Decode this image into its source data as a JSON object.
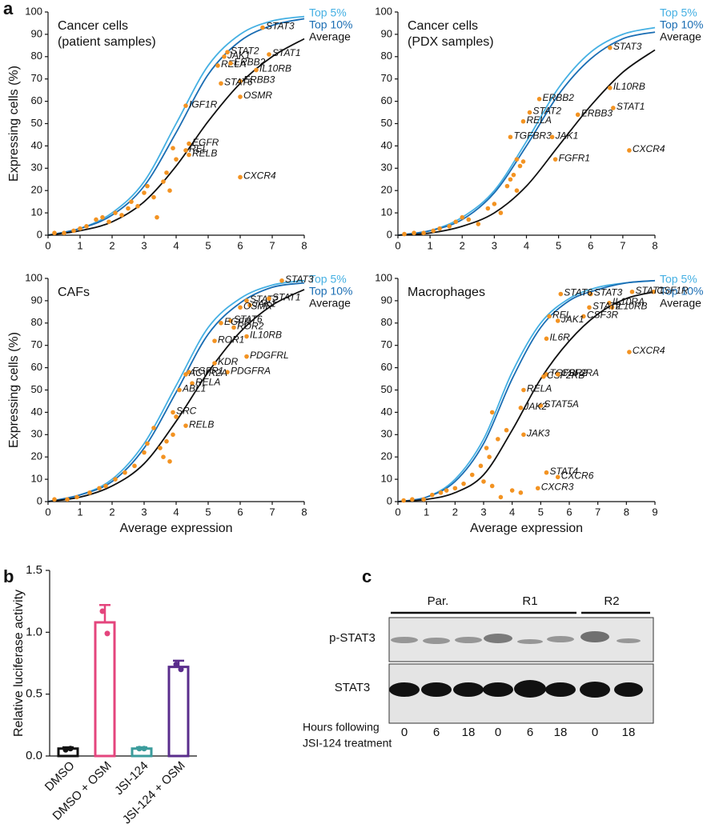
{
  "panel_labels": [
    "a",
    "b",
    "c"
  ],
  "chart_data": [
    {
      "type": "scatter",
      "title": [
        "Cancer cells",
        "(patient samples)"
      ],
      "ylabel": "Expressing cells (%)",
      "xlim": [
        0,
        8
      ],
      "ylim": [
        0,
        100
      ],
      "xticks": [
        0,
        1,
        2,
        3,
        4,
        5,
        6,
        7,
        8
      ],
      "yticks": [
        0,
        10,
        20,
        30,
        40,
        50,
        60,
        70,
        80,
        90,
        100
      ],
      "series": [
        {
          "name": "Top 5%",
          "color": "#45b0e3",
          "x": [
            0,
            1,
            2,
            3,
            4,
            5,
            6,
            7,
            8
          ],
          "values": [
            0,
            3,
            10,
            24,
            50,
            76,
            90,
            96,
            98
          ]
        },
        {
          "name": "Top 10%",
          "color": "#1a6db3",
          "x": [
            0,
            1,
            2,
            3,
            4,
            5,
            6,
            7,
            8
          ],
          "values": [
            0,
            3,
            9,
            22,
            46,
            72,
            87,
            94,
            97
          ]
        },
        {
          "name": "Average",
          "color": "#111111",
          "x": [
            0,
            1,
            2,
            3,
            4,
            5,
            6,
            7,
            8
          ],
          "values": [
            0,
            2,
            6,
            15,
            31,
            51,
            68,
            80,
            88
          ]
        }
      ],
      "points": {
        "color": "#f39322",
        "x": [
          6.7,
          5.6,
          5.5,
          5.3,
          5.7,
          6.9,
          6.5,
          6.0,
          5.4,
          6.0,
          4.3,
          4.4,
          4.3,
          4.4,
          6.0,
          0.2,
          0.5,
          0.8,
          1.0,
          1.2,
          1.5,
          1.7,
          1.9,
          2.1,
          2.3,
          2.5,
          2.6,
          2.8,
          3.0,
          3.1,
          3.3,
          3.4,
          3.6,
          3.7,
          3.9,
          4.0,
          3.8
        ],
        "values": [
          93,
          82,
          80,
          76,
          77,
          81,
          74,
          69,
          68,
          62,
          58,
          41,
          38,
          36,
          26,
          1,
          1,
          2,
          3,
          4,
          7,
          8,
          6,
          10,
          9,
          12,
          15,
          13,
          19,
          22,
          17,
          8,
          24,
          28,
          39,
          34,
          20
        ],
        "labels": [
          "STAT3",
          "STAT2",
          "JAK1",
          "RELA",
          "ERBB2",
          "STAT1",
          "IL10RB",
          "ERBB3",
          "STAT6",
          "OSMR",
          "IGF1R",
          "EGFR",
          "REL",
          "RELB",
          "CXCR4",
          null,
          null,
          null,
          null,
          null,
          null,
          null,
          null,
          null,
          null,
          null,
          null,
          null,
          null,
          null,
          null,
          null,
          null,
          null,
          null,
          null,
          null
        ]
      }
    },
    {
      "type": "scatter",
      "title": [
        "Cancer cells",
        "(PDX samples)"
      ],
      "xlim": [
        0,
        8
      ],
      "ylim": [
        0,
        100
      ],
      "xticks": [
        0,
        1,
        2,
        3,
        4,
        5,
        6,
        7,
        8
      ],
      "yticks": [
        0,
        10,
        20,
        30,
        40,
        50,
        60,
        70,
        80,
        90,
        100
      ],
      "series": [
        {
          "name": "Top 5%",
          "color": "#45b0e3",
          "x": [
            0,
            1,
            2,
            3,
            4,
            5,
            6,
            7,
            8
          ],
          "values": [
            0,
            2,
            8,
            20,
            42,
            66,
            82,
            90,
            93
          ]
        },
        {
          "name": "Top 10%",
          "color": "#1a6db3",
          "x": [
            0,
            1,
            2,
            3,
            4,
            5,
            6,
            7,
            8
          ],
          "values": [
            0,
            2,
            7,
            19,
            40,
            63,
            79,
            88,
            91
          ]
        },
        {
          "name": "Average",
          "color": "#111111",
          "x": [
            0,
            1,
            2,
            3,
            4,
            5,
            6,
            7,
            8
          ],
          "values": [
            0,
            1,
            4,
            10,
            22,
            40,
            58,
            73,
            83
          ]
        }
      ],
      "points": {
        "color": "#f39322",
        "x": [
          6.6,
          6.6,
          6.7,
          4.4,
          4.1,
          3.9,
          5.6,
          3.5,
          4.8,
          4.9,
          7.2,
          0.2,
          0.5,
          0.8,
          1.1,
          1.3,
          1.6,
          1.8,
          2.0,
          2.2,
          2.5,
          2.8,
          3.0,
          3.2,
          3.4,
          3.5,
          3.6,
          3.7,
          3.8,
          3.9,
          3.7
        ],
        "values": [
          84,
          66,
          57,
          61,
          55,
          51,
          54,
          44,
          44,
          34,
          38,
          0.5,
          1,
          1,
          2,
          3,
          4,
          6,
          8,
          7,
          5,
          12,
          14,
          10,
          22,
          25,
          27,
          20,
          31,
          33,
          34
        ],
        "labels": [
          "STAT3",
          "IL10RB",
          "STAT1",
          "ERBB2",
          "STAT2",
          "RELA",
          "ERBB3",
          "TGFBR3",
          "JAK1",
          "FGFR1",
          "CXCR4",
          null,
          null,
          null,
          null,
          null,
          null,
          null,
          null,
          null,
          null,
          null,
          null,
          null,
          null,
          null,
          null,
          null,
          null,
          null,
          null
        ]
      }
    },
    {
      "type": "scatter",
      "title": [
        "CAFs"
      ],
      "xlabel": "Average expression",
      "ylabel": "Expressing cells (%)",
      "xlim": [
        0,
        8
      ],
      "ylim": [
        0,
        100
      ],
      "xticks": [
        0,
        1,
        2,
        3,
        4,
        5,
        6,
        7,
        8
      ],
      "yticks": [
        0,
        10,
        20,
        30,
        40,
        50,
        60,
        70,
        80,
        90,
        100
      ],
      "series": [
        {
          "name": "Top 5%",
          "color": "#45b0e3",
          "x": [
            0,
            1,
            2,
            3,
            4,
            5,
            6,
            7,
            8
          ],
          "values": [
            0,
            3,
            10,
            26,
            52,
            78,
            91,
            97,
            99
          ]
        },
        {
          "name": "Top 10%",
          "color": "#1a6db3",
          "x": [
            0,
            1,
            2,
            3,
            4,
            5,
            6,
            7,
            8
          ],
          "values": [
            0,
            3,
            9,
            24,
            49,
            75,
            89,
            96,
            98
          ]
        },
        {
          "name": "Average",
          "color": "#111111",
          "x": [
            0,
            1,
            2,
            3,
            4,
            5,
            6,
            7,
            8
          ],
          "values": [
            0,
            2,
            7,
            17,
            36,
            58,
            76,
            88,
            95
          ]
        }
      ],
      "points": {
        "color": "#f39322",
        "x": [
          7.3,
          6.2,
          6.3,
          6.9,
          6.0,
          5.7,
          5.4,
          5.8,
          5.2,
          6.2,
          5.2,
          6.2,
          5.6,
          4.4,
          4.3,
          4.5,
          4.1,
          3.9,
          4.3,
          0.2,
          0.6,
          0.9,
          1.3,
          1.6,
          1.8,
          2.1,
          2.4,
          2.7,
          3.0,
          3.1,
          3.3,
          3.5,
          3.6,
          3.8,
          3.9,
          4.0,
          3.7
        ],
        "values": [
          99,
          90,
          88,
          91,
          87,
          81,
          80,
          78,
          72,
          74,
          62,
          65,
          58,
          58,
          57,
          53,
          50,
          40,
          34,
          1,
          1,
          2,
          4,
          6,
          7,
          10,
          13,
          16,
          22,
          26,
          33,
          24,
          20,
          18,
          30,
          38,
          27
        ],
        "labels": [
          "STAT3",
          "STAT2",
          "JAK1",
          "STAT1",
          "OSMR",
          "STAT6",
          "EGFR",
          "ROR2",
          "ROR1",
          "IL10RB",
          "KDR",
          "PDGFRL",
          "PDGFRA",
          "FGFR1",
          "ACVR2A",
          "RELA",
          "ABL1",
          "SRC",
          "RELB",
          null,
          null,
          null,
          null,
          null,
          null,
          null,
          null,
          null,
          null,
          null,
          null,
          null,
          null,
          null,
          null,
          null,
          null
        ]
      }
    },
    {
      "type": "scatter",
      "title": [
        "Macrophages"
      ],
      "xlabel": "Average expression",
      "xlim": [
        0,
        9
      ],
      "ylim": [
        0,
        100
      ],
      "xticks": [
        0,
        1,
        2,
        3,
        4,
        5,
        6,
        7,
        8,
        9
      ],
      "yticks": [
        0,
        10,
        20,
        30,
        40,
        50,
        60,
        70,
        80,
        90,
        100
      ],
      "series": [
        {
          "name": "Top 5%",
          "color": "#45b0e3",
          "x": [
            0,
            1,
            2,
            3,
            4,
            5,
            6,
            7,
            8,
            9
          ],
          "values": [
            0,
            2,
            10,
            28,
            58,
            80,
            91,
            96,
            98,
            99
          ]
        },
        {
          "name": "Top 10%",
          "color": "#1a6db3",
          "x": [
            0,
            1,
            2,
            3,
            4,
            5,
            6,
            7,
            8,
            9
          ],
          "values": [
            0,
            2,
            9,
            26,
            55,
            78,
            90,
            95,
            98,
            99
          ]
        },
        {
          "name": "Average",
          "color": "#111111",
          "x": [
            0,
            1,
            2,
            3,
            4,
            5,
            6,
            7,
            8,
            9
          ],
          "values": [
            0,
            1,
            4,
            12,
            32,
            55,
            72,
            84,
            91,
            94
          ]
        }
      ],
      "points": {
        "color": "#f39322",
        "x": [
          8.95,
          8.2,
          7.4,
          7.5,
          6.75,
          5.7,
          6.7,
          6.5,
          5.3,
          5.6,
          5.2,
          8.1,
          5.2,
          5.1,
          5.6,
          4.4,
          5.0,
          4.3,
          4.4,
          5.2,
          5.6,
          4.9,
          0.2,
          0.5,
          0.9,
          1.2,
          1.5,
          1.7,
          2.0,
          2.3,
          2.6,
          2.9,
          3.1,
          3.3,
          3.2,
          3.5,
          3.8,
          3.0,
          4.0,
          4.3,
          3.6,
          3.3
        ],
        "values": [
          94,
          94,
          89,
          87,
          93,
          93,
          87,
          83,
          83,
          81,
          73,
          67,
          57,
          56,
          57,
          50,
          43,
          42,
          30,
          13,
          11,
          6,
          0.5,
          1,
          1,
          3,
          4,
          5,
          6,
          8,
          12,
          16,
          24,
          40,
          20,
          28,
          32,
          9,
          5,
          4,
          2,
          7
        ],
        "labels": [
          "CSF1R",
          "STAT1",
          "IL10RA",
          "IL10RB",
          "STAT3",
          "STAT6",
          "STAT2",
          "CSF3R",
          "REL",
          "JAK1",
          "IL6R",
          "CXCR4",
          "TGFBR2",
          "CSF2RB",
          "CSF2RA",
          "RELA",
          "STAT5A",
          "JAK2",
          "JAK3",
          "STAT4",
          "CXCR6",
          "CXCR3",
          null,
          null,
          null,
          null,
          null,
          null,
          null,
          null,
          null,
          null,
          null,
          null,
          null,
          null,
          null,
          null,
          null,
          null,
          null,
          null
        ]
      }
    },
    {
      "type": "bar",
      "ylabel": "Relative luciferase activity",
      "categories": [
        "DMSO",
        "DMSO + OSM",
        "JSI-124",
        "JSI-124 + OSM"
      ],
      "values": [
        0.06,
        1.08,
        0.06,
        0.72
      ],
      "errors": [
        0.01,
        0.14,
        0.01,
        0.05
      ],
      "replicates": [
        [
          0.05,
          0.06
        ],
        [
          1.17,
          0.99
        ],
        [
          0.06,
          0.06
        ],
        [
          0.74,
          0.7
        ]
      ],
      "colors": [
        "#111111",
        "#e4457d",
        "#3b9c9c",
        "#5a2d8c"
      ],
      "ylim": [
        0,
        1.5
      ],
      "yticks": [
        {
          "value": 0,
          "label": "0.0"
        },
        0.5,
        {
          "value": 1,
          "label": "1.0"
        },
        1.5
      ]
    }
  ],
  "blot": {
    "groups": [
      "Par.",
      "R1",
      "R2"
    ],
    "rows": [
      "p-STAT3",
      "STAT3"
    ],
    "hours_label": [
      "Hours following",
      "JSI-124 treatment"
    ],
    "hours": [
      0,
      6,
      18,
      0,
      6,
      18,
      0,
      18
    ]
  }
}
